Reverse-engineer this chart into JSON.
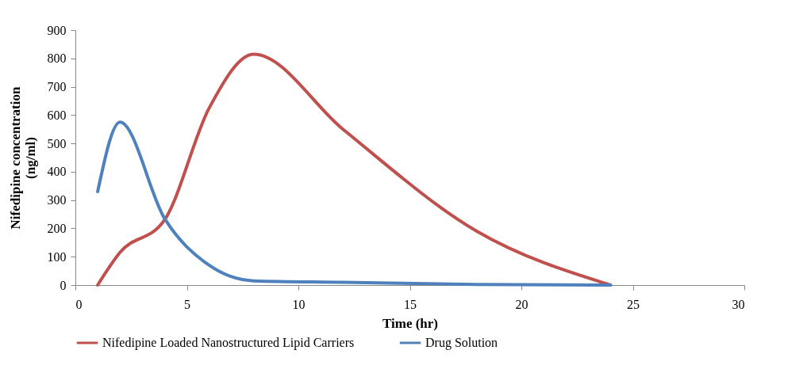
{
  "chart_data": {
    "type": "line",
    "xlabel": "Time (hr)",
    "ylabel": "Nifedipine concentration (ng/ml)",
    "x": [
      1,
      2,
      4,
      6,
      8,
      12,
      18,
      24
    ],
    "series": [
      {
        "name": "Nifedipine Loaded Nanostructured Lipid Carriers",
        "color": "#c0504d",
        "values": [
          0,
          115,
          230,
          625,
          815,
          550,
          190,
          0
        ]
      },
      {
        "name": "Drug Solution",
        "color": "#4f81bd",
        "values": [
          330,
          575,
          235,
          70,
          15,
          10,
          2,
          0
        ]
      }
    ],
    "xlim": [
      0,
      30
    ],
    "xticks": [
      0,
      5,
      10,
      15,
      20,
      25,
      30
    ],
    "ylim": [
      0,
      900
    ],
    "yticks": [
      0,
      100,
      200,
      300,
      400,
      500,
      600,
      700,
      800,
      900
    ],
    "grid": false,
    "legend": "bottom",
    "marker": "none",
    "line_style": "solid"
  }
}
